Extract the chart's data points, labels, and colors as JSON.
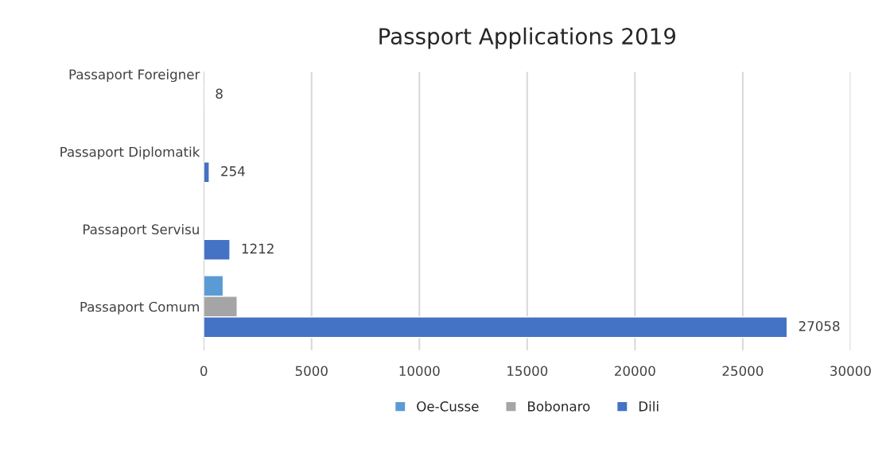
{
  "chart_data": {
    "type": "bar",
    "title": "Passport Applications 2019",
    "orientation": "horizontal",
    "categories": [
      "Passaport Foreigner",
      "Passaport Diplomatik",
      "Passaport Servisu",
      "Passaport Comum"
    ],
    "series": [
      {
        "name": "Oe-Cusse",
        "color": "#5b9bd5",
        "values": [
          null,
          null,
          null,
          900
        ]
      },
      {
        "name": "Bobonaro",
        "color": "#a5a5a5",
        "values": [
          null,
          null,
          null,
          1550
        ]
      },
      {
        "name": "Dili",
        "color": "#4472c4",
        "values": [
          8,
          254,
          1212,
          27058
        ],
        "value_labels": [
          "8",
          "254",
          "1212",
          "27058"
        ]
      }
    ],
    "xlim": [
      0,
      30000
    ],
    "xticks": [
      0,
      5000,
      10000,
      15000,
      20000,
      25000,
      30000
    ],
    "grid": "x",
    "legend": "bottom"
  }
}
